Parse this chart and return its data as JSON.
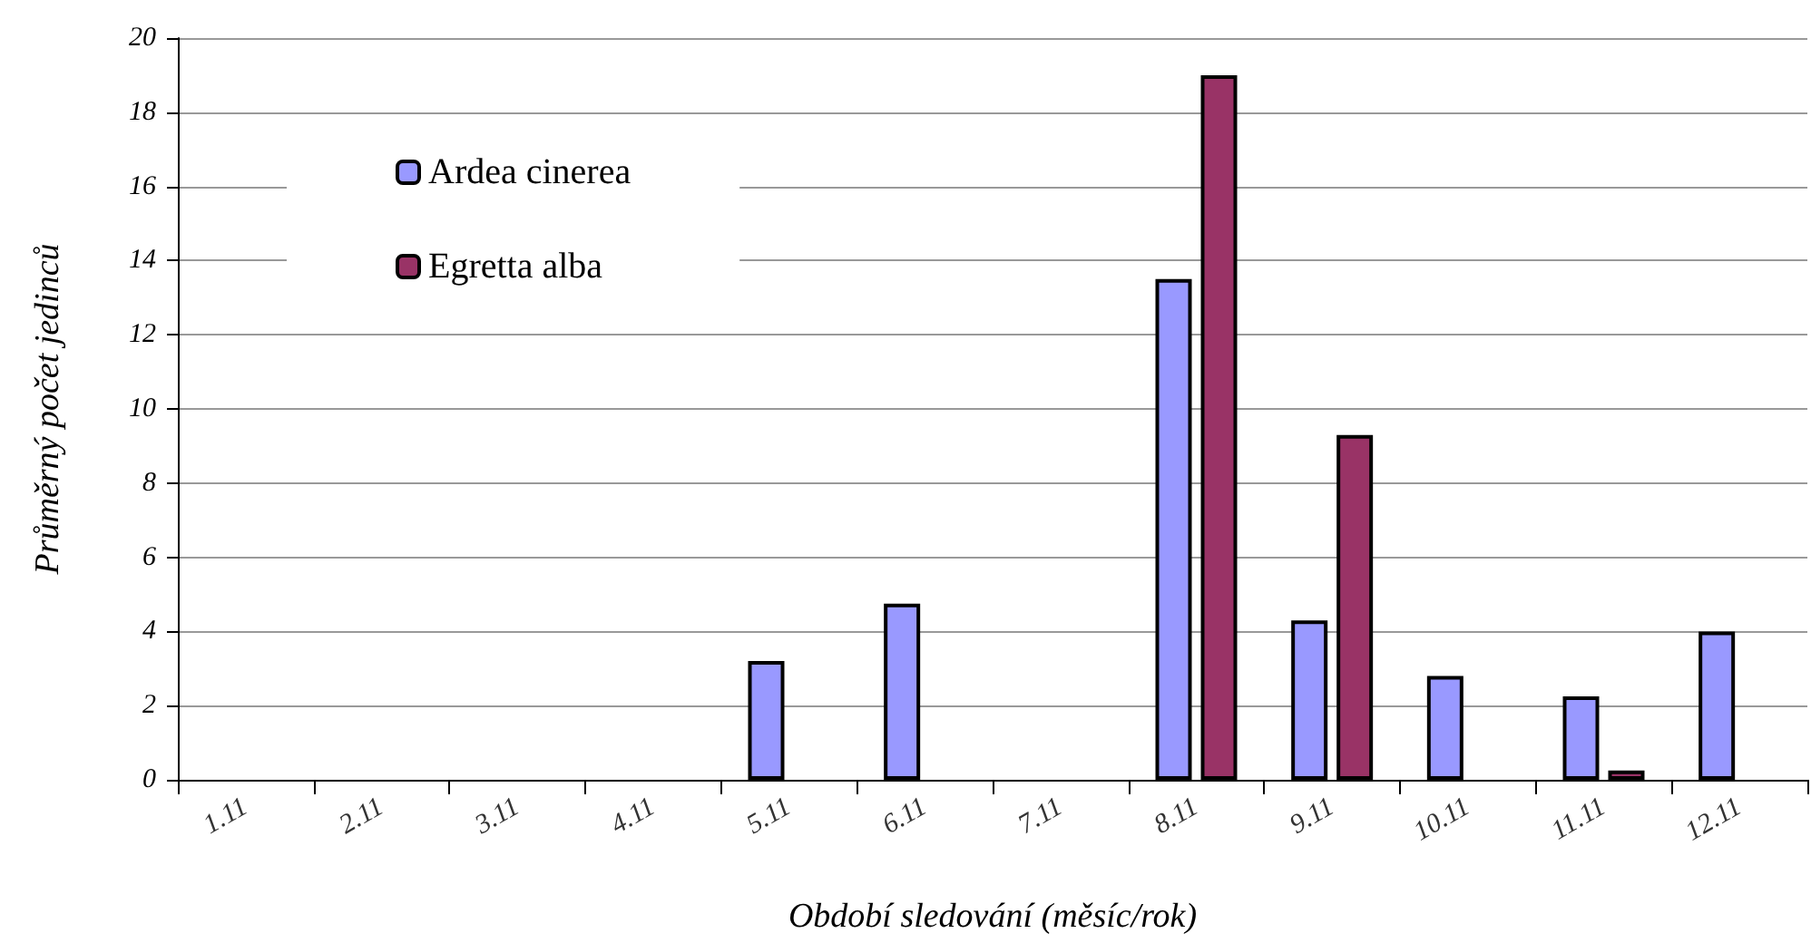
{
  "chart_data": {
    "type": "bar",
    "xlabel": "Období sledování (měsíc/rok)",
    "ylabel": "Průměrný počet jedinců",
    "categories": [
      "1.11",
      "2.11",
      "3.11",
      "4.11",
      "5.11",
      "6.11",
      "7.11",
      "8.11",
      "9.11",
      "10.11",
      "11.11",
      "12.11"
    ],
    "series": [
      {
        "name": "Ardea cinerea",
        "color": "#9999ff",
        "values": [
          0,
          0,
          0,
          0,
          3.2,
          4.75,
          0,
          13.5,
          4.3,
          2.8,
          2.25,
          4.0
        ]
      },
      {
        "name": "Egretta alba",
        "color": "#993366",
        "values": [
          0,
          0,
          0,
          0,
          0,
          0,
          0,
          19.0,
          9.3,
          0,
          0.25,
          0
        ]
      }
    ],
    "ylim": [
      0,
      20
    ],
    "yticks": [
      0,
      2,
      4,
      6,
      8,
      10,
      12,
      14,
      16,
      18,
      20
    ],
    "grid": "y",
    "legend": "top left"
  }
}
